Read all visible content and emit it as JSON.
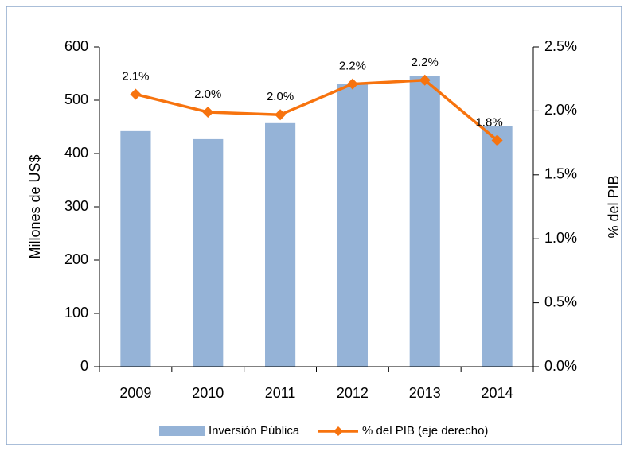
{
  "chart_data": {
    "type": "combo",
    "categories": [
      "2009",
      "2010",
      "2011",
      "2012",
      "2013",
      "2014"
    ],
    "series": [
      {
        "name": "Inversión Pública",
        "type": "bar",
        "color": "#95b3d7",
        "values": [
          442,
          427,
          457,
          530,
          545,
          452
        ]
      },
      {
        "name": "% del PIB (eje derecho)",
        "type": "line",
        "axis": "y2",
        "color": "#f7730e",
        "values": [
          2.13,
          1.99,
          1.97,
          2.21,
          2.24,
          1.77
        ],
        "value_labels": [
          "2.1%",
          "2.0%",
          "2.0%",
          "2.2%",
          "2.2%",
          "1.8%"
        ]
      }
    ],
    "ylabel": "Millones de US$",
    "y2label": "% del PIB",
    "ylim": [
      0,
      600
    ],
    "yticks": [
      0,
      100,
      200,
      300,
      400,
      500,
      600
    ],
    "y2lim": [
      0,
      2.5
    ],
    "y2ticks": [
      {
        "value": 0,
        "label": "0.0%"
      },
      {
        "value": 0.5,
        "label": "0.5%"
      },
      {
        "value": 1,
        "label": "1.0%"
      },
      {
        "value": 1.5,
        "label": "1.5%"
      },
      {
        "value": 2,
        "label": "2.0%"
      },
      {
        "value": 2.5,
        "label": "2.5%"
      }
    ],
    "grid": false,
    "legend": "bottom"
  }
}
